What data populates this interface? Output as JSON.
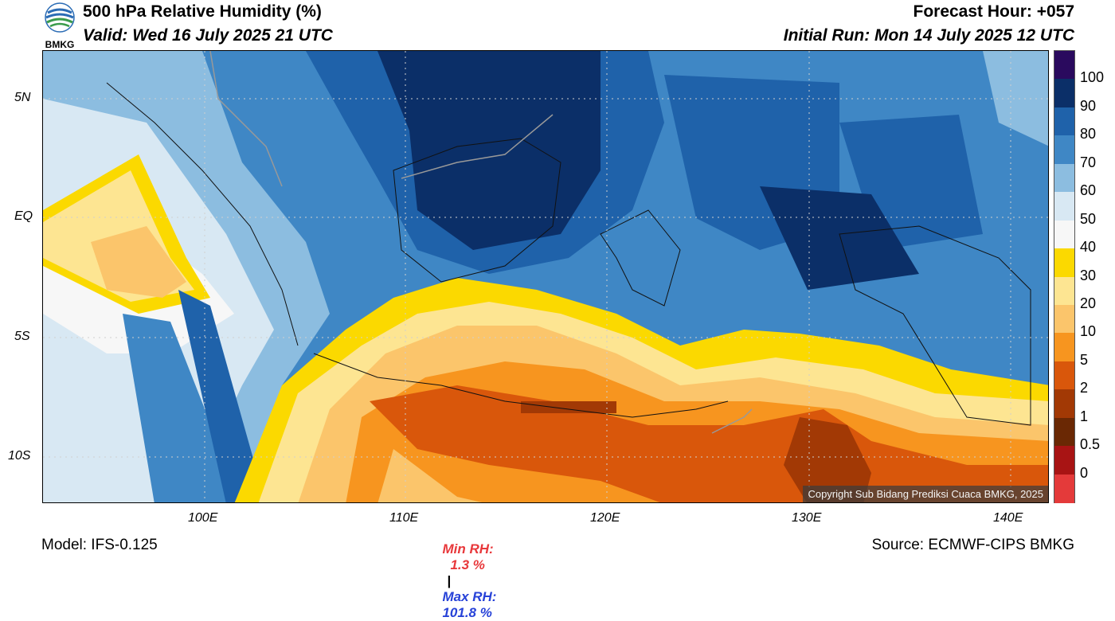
{
  "header": {
    "logo_text": "BMKG",
    "title": "500 hPa Relative Humidity (%)",
    "valid": "Valid: Wed 16 July 2025 21 UTC",
    "forecast_hour": "Forecast Hour: +057",
    "initial_run": "Initial Run: Mon 14 July 2025 12 UTC"
  },
  "axes": {
    "lat_ticks": [
      "5N",
      "EQ",
      "5S",
      "10S"
    ],
    "lon_ticks": [
      "100E",
      "110E",
      "120E",
      "130E",
      "140E"
    ]
  },
  "colorbar": {
    "labels": [
      "100",
      "90",
      "80",
      "70",
      "60",
      "50",
      "40",
      "30",
      "20",
      "10",
      "5",
      "2",
      "1",
      "0.5",
      "0"
    ],
    "colors": [
      "#2a0a5e",
      "#0b2f68",
      "#1f62aa",
      "#3f87c5",
      "#8cbde0",
      "#d8e8f3",
      "#f7f7f7",
      "#fbd900",
      "#fde592",
      "#fbc56b",
      "#f7951f",
      "#d9570b",
      "#a23905",
      "#6a2804",
      "#a81414",
      "#e43a3a"
    ]
  },
  "map": {
    "copyright": "Copyright Sub Bidang Prediksi Cuaca BMKG, 2025"
  },
  "stats": {
    "min_label": "Min RH:",
    "min_value": "1.3 %",
    "separator": "|",
    "max_label": "Max RH:",
    "max_value": "101.8 %",
    "min_color": "#e8383b",
    "max_color": "#2742d8"
  },
  "footer": {
    "model": "Model: IFS-0.125",
    "source": "Source: ECMWF-CIPS BMKG"
  }
}
